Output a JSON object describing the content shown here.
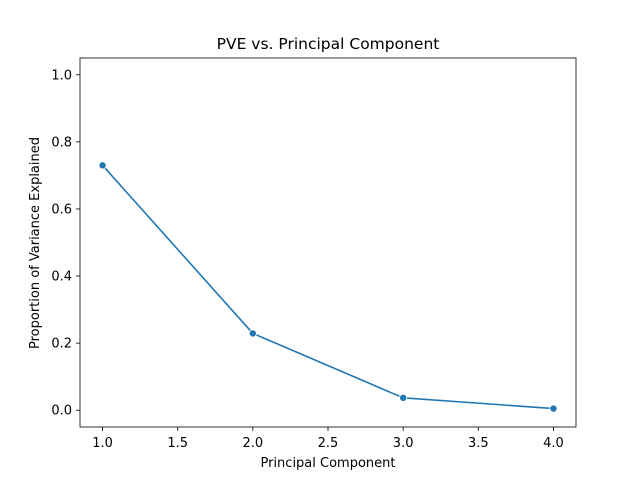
{
  "chart_data": {
    "type": "line",
    "title": "PVE vs. Principal Component",
    "xlabel": "Principal Component",
    "ylabel": "Proportion of Variance Explained",
    "xlim": [
      0.85,
      4.15
    ],
    "ylim": [
      -0.05,
      1.05
    ],
    "xticks": [
      1.0,
      1.5,
      2.0,
      2.5,
      3.0,
      3.5,
      4.0
    ],
    "xtick_labels": [
      "1.0",
      "1.5",
      "2.0",
      "2.5",
      "3.0",
      "3.5",
      "4.0"
    ],
    "yticks": [
      0.0,
      0.2,
      0.4,
      0.6,
      0.8,
      1.0
    ],
    "ytick_labels": [
      "0.0",
      "0.2",
      "0.4",
      "0.6",
      "0.8",
      "1.0"
    ],
    "grid": false,
    "series": [
      {
        "x": [
          1,
          2,
          3,
          4
        ],
        "y": [
          0.73,
          0.229,
          0.037,
          0.005
        ],
        "color": "#1f77b4",
        "marker": "circle"
      }
    ]
  }
}
